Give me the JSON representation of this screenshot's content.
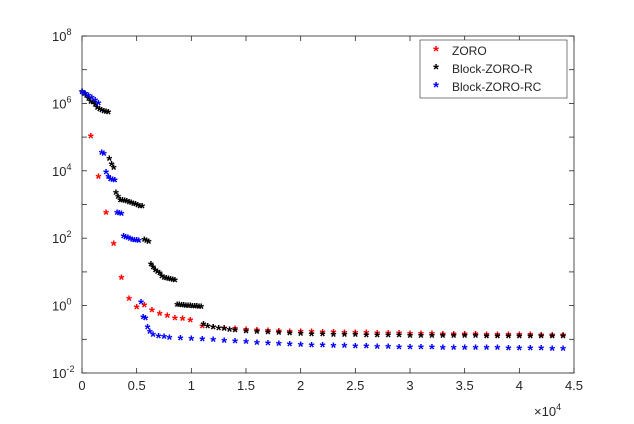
{
  "chart_data": {
    "type": "scatter",
    "xaxis": {
      "scale": "linear",
      "range": [
        0,
        45000
      ],
      "ticks": [
        0,
        5000,
        10000,
        15000,
        20000,
        25000,
        30000,
        35000,
        40000,
        45000
      ],
      "tick_labels": [
        "0",
        "0.5",
        "1",
        "1.5",
        "2",
        "2.5",
        "3",
        "3.5",
        "4",
        "4.5"
      ],
      "multiplier_base": "×10",
      "multiplier_exp": "4",
      "label": ""
    },
    "yaxis": {
      "scale": "log",
      "range": [
        0.01,
        100000000
      ],
      "ticks": [
        0.01,
        1,
        100,
        10000,
        1000000,
        100000000
      ],
      "tick_bases": [
        "10",
        "10",
        "10",
        "10",
        "10",
        "10"
      ],
      "tick_exps": [
        "-2",
        "0",
        "2",
        "4",
        "6",
        "8"
      ],
      "label": ""
    },
    "grid": false,
    "legend_position": "top-right",
    "marker": "*",
    "series": [
      {
        "name": "ZORO",
        "color": "#ff0000",
        "points": [
          [
            800,
            95000
          ],
          [
            1500,
            6000
          ],
          [
            2200,
            500
          ],
          [
            2900,
            60
          ],
          [
            3600,
            6
          ],
          [
            4300,
            1.4
          ],
          [
            5000,
            0.8
          ],
          [
            5700,
            0.9
          ],
          [
            6400,
            0.65
          ],
          [
            7100,
            0.5
          ],
          [
            7800,
            0.45
          ],
          [
            8500,
            0.38
          ],
          [
            9200,
            0.36
          ],
          [
            9900,
            0.33
          ],
          [
            11000,
            0.22
          ],
          [
            12000,
            0.2
          ],
          [
            13000,
            0.19
          ],
          [
            14000,
            0.18
          ],
          [
            15000,
            0.17
          ],
          [
            16000,
            0.165
          ],
          [
            17000,
            0.16
          ],
          [
            18000,
            0.155
          ],
          [
            19000,
            0.15
          ],
          [
            20000,
            0.15
          ],
          [
            21000,
            0.148
          ],
          [
            22000,
            0.145
          ],
          [
            23000,
            0.143
          ],
          [
            24000,
            0.14
          ],
          [
            25000,
            0.14
          ],
          [
            26000,
            0.138
          ],
          [
            27000,
            0.135
          ],
          [
            28000,
            0.133
          ],
          [
            29000,
            0.132
          ],
          [
            30000,
            0.13
          ],
          [
            31000,
            0.13
          ],
          [
            32000,
            0.128
          ],
          [
            33000,
            0.127
          ],
          [
            34000,
            0.126
          ],
          [
            35000,
            0.125
          ],
          [
            36000,
            0.124
          ],
          [
            37000,
            0.123
          ],
          [
            38000,
            0.122
          ],
          [
            39000,
            0.121
          ],
          [
            40000,
            0.12
          ],
          [
            41000,
            0.12
          ],
          [
            42000,
            0.119
          ],
          [
            43000,
            0.118
          ],
          [
            44000,
            0.117
          ]
        ]
      },
      {
        "name": "Block-ZORO-R",
        "color": "#000000",
        "points": [
          [
            0,
            2000000
          ],
          [
            200,
            1700000
          ],
          [
            400,
            1500000
          ],
          [
            600,
            1200000
          ],
          [
            800,
            1000000
          ],
          [
            1000,
            950000
          ],
          [
            1200,
            800000
          ],
          [
            1400,
            650000
          ],
          [
            1600,
            600000
          ],
          [
            1800,
            560000
          ],
          [
            2000,
            520000
          ],
          [
            2200,
            500000
          ],
          [
            2400,
            480000
          ],
          [
            2500,
            20000
          ],
          [
            2700,
            14000
          ],
          [
            2900,
            11000
          ],
          [
            3100,
            2000
          ],
          [
            3300,
            1500
          ],
          [
            3500,
            1200
          ],
          [
            3700,
            1200
          ],
          [
            3900,
            1150
          ],
          [
            4100,
            1100
          ],
          [
            4300,
            1050
          ],
          [
            4500,
            1000
          ],
          [
            4700,
            950
          ],
          [
            4900,
            900
          ],
          [
            5100,
            850
          ],
          [
            5300,
            800
          ],
          [
            5500,
            780
          ],
          [
            5700,
            80
          ],
          [
            5900,
            75
          ],
          [
            6100,
            70
          ],
          [
            6300,
            15
          ],
          [
            6500,
            12
          ],
          [
            6700,
            10
          ],
          [
            6900,
            9
          ],
          [
            7100,
            8
          ],
          [
            7300,
            6.5
          ],
          [
            7500,
            6
          ],
          [
            7700,
            5.8
          ],
          [
            7900,
            5.5
          ],
          [
            8100,
            5.3
          ],
          [
            8300,
            5.2
          ],
          [
            8500,
            5.1
          ],
          [
            8700,
            0.95
          ],
          [
            8900,
            0.93
          ],
          [
            9100,
            0.91
          ],
          [
            9300,
            0.9
          ],
          [
            9500,
            0.89
          ],
          [
            9700,
            0.88
          ],
          [
            9900,
            0.87
          ],
          [
            10100,
            0.86
          ],
          [
            10300,
            0.85
          ],
          [
            10500,
            0.84
          ],
          [
            10700,
            0.83
          ],
          [
            10900,
            0.82
          ],
          [
            11100,
            0.25
          ],
          [
            11500,
            0.22
          ],
          [
            12000,
            0.2
          ],
          [
            12500,
            0.19
          ],
          [
            13000,
            0.18
          ],
          [
            13500,
            0.17
          ],
          [
            14000,
            0.165
          ],
          [
            15000,
            0.155
          ],
          [
            16000,
            0.148
          ],
          [
            17000,
            0.142
          ],
          [
            18000,
            0.138
          ],
          [
            19000,
            0.134
          ],
          [
            20000,
            0.13
          ],
          [
            21000,
            0.127
          ],
          [
            22000,
            0.125
          ],
          [
            23000,
            0.123
          ],
          [
            24000,
            0.121
          ],
          [
            25000,
            0.12
          ],
          [
            26000,
            0.119
          ],
          [
            27000,
            0.118
          ],
          [
            28000,
            0.117
          ],
          [
            29000,
            0.116
          ],
          [
            30000,
            0.115
          ],
          [
            31000,
            0.115
          ],
          [
            32000,
            0.114
          ],
          [
            33000,
            0.113
          ],
          [
            34000,
            0.113
          ],
          [
            35000,
            0.112
          ],
          [
            36000,
            0.112
          ],
          [
            37000,
            0.111
          ],
          [
            38000,
            0.111
          ],
          [
            39000,
            0.11
          ],
          [
            40000,
            0.11
          ],
          [
            41000,
            0.11
          ],
          [
            42000,
            0.109
          ],
          [
            43000,
            0.109
          ],
          [
            44000,
            0.109
          ]
        ]
      },
      {
        "name": "Block-ZORO-RC",
        "color": "#0000ff",
        "points": [
          [
            0,
            1900000
          ],
          [
            300,
            1700000
          ],
          [
            600,
            1500000
          ],
          [
            900,
            1300000
          ],
          [
            1200,
            1100000
          ],
          [
            1500,
            900000
          ],
          [
            1800,
            30000
          ],
          [
            2000,
            28000
          ],
          [
            2200,
            8000
          ],
          [
            2400,
            6000
          ],
          [
            2600,
            5000
          ],
          [
            2800,
            4800
          ],
          [
            3000,
            4600
          ],
          [
            3200,
            500
          ],
          [
            3400,
            480
          ],
          [
            3600,
            470
          ],
          [
            3800,
            100
          ],
          [
            4000,
            95
          ],
          [
            4200,
            90
          ],
          [
            4400,
            85
          ],
          [
            4600,
            80
          ],
          [
            4800,
            78
          ],
          [
            5000,
            76
          ],
          [
            5200,
            74
          ],
          [
            5400,
            1.1
          ],
          [
            5600,
            0.4
          ],
          [
            5800,
            0.38
          ],
          [
            6000,
            0.2
          ],
          [
            6200,
            0.15
          ],
          [
            6500,
            0.12
          ],
          [
            7000,
            0.11
          ],
          [
            7500,
            0.105
          ],
          [
            8000,
            0.1
          ],
          [
            9000,
            0.095
          ],
          [
            10000,
            0.092
          ],
          [
            11000,
            0.09
          ],
          [
            12000,
            0.085
          ],
          [
            13000,
            0.08
          ],
          [
            14000,
            0.077
          ],
          [
            15000,
            0.074
          ],
          [
            16000,
            0.071
          ],
          [
            17000,
            0.068
          ],
          [
            18000,
            0.066
          ],
          [
            19000,
            0.064
          ],
          [
            20000,
            0.062
          ],
          [
            21000,
            0.06
          ],
          [
            22000,
            0.059
          ],
          [
            23000,
            0.058
          ],
          [
            24000,
            0.057
          ],
          [
            25000,
            0.056
          ],
          [
            26000,
            0.055
          ],
          [
            27000,
            0.054
          ],
          [
            28000,
            0.053
          ],
          [
            29000,
            0.052
          ],
          [
            30000,
            0.052
          ],
          [
            31000,
            0.051
          ],
          [
            32000,
            0.051
          ],
          [
            33000,
            0.05
          ],
          [
            34000,
            0.05
          ],
          [
            35000,
            0.05
          ],
          [
            36000,
            0.049
          ],
          [
            37000,
            0.049
          ],
          [
            38000,
            0.049
          ],
          [
            39000,
            0.048
          ],
          [
            40000,
            0.048
          ],
          [
            41000,
            0.048
          ],
          [
            42000,
            0.048
          ],
          [
            43000,
            0.047
          ],
          [
            44000,
            0.047
          ]
        ]
      }
    ]
  }
}
